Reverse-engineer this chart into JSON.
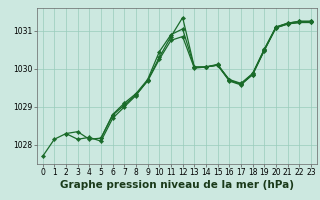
{
  "title": "Graphe pression niveau de la mer (hPa)",
  "background_color": "#cce8e0",
  "plot_background": "#cce8e0",
  "line_color": "#1a6b2a",
  "marker_color": "#1a6b2a",
  "grid_color": "#99ccbb",
  "xlim": [
    -0.5,
    23.5
  ],
  "ylim": [
    1027.5,
    1031.6
  ],
  "yticks": [
    1028,
    1029,
    1030,
    1031
  ],
  "xticks": [
    0,
    1,
    2,
    3,
    4,
    5,
    6,
    7,
    8,
    9,
    10,
    11,
    12,
    13,
    14,
    15,
    16,
    17,
    18,
    19,
    20,
    21,
    22,
    23
  ],
  "series": [
    [
      1027.7,
      1028.15,
      1028.3,
      1028.15,
      1028.2,
      1028.1,
      1028.7,
      1029.0,
      1029.3,
      1029.7,
      1030.3,
      1030.85,
      1031.35,
      1030.05,
      1030.05,
      1030.1,
      1029.7,
      1029.6,
      1029.85,
      1030.5,
      1031.1,
      1031.2,
      1031.25,
      1031.25
    ],
    [
      null,
      null,
      1028.3,
      1028.35,
      1028.15,
      1028.18,
      1028.8,
      1029.1,
      1029.35,
      1029.72,
      1030.45,
      1030.9,
      1031.05,
      1030.05,
      1030.05,
      1030.1,
      1029.72,
      1029.62,
      1029.88,
      1030.52,
      1031.1,
      1031.2,
      1031.25,
      1031.25
    ],
    [
      null,
      null,
      null,
      null,
      null,
      1028.18,
      1028.78,
      1029.05,
      1029.32,
      1029.68,
      1030.25,
      1030.75,
      1030.85,
      1030.02,
      1030.05,
      1030.1,
      1029.68,
      1029.58,
      1029.85,
      1030.48,
      1031.08,
      1031.18,
      1031.22,
      1031.22
    ],
    [
      null,
      null,
      null,
      null,
      null,
      null,
      null,
      null,
      null,
      null,
      null,
      null,
      null,
      null,
      1030.05,
      1030.12,
      1029.7,
      1029.6,
      1029.87,
      1030.5,
      1031.08,
      1031.18,
      1031.22,
      1031.22
    ]
  ],
  "tick_fontsize": 5.5,
  "title_fontsize": 7.5,
  "line_width": 0.9,
  "marker_size": 2.2,
  "marker_style": "D"
}
